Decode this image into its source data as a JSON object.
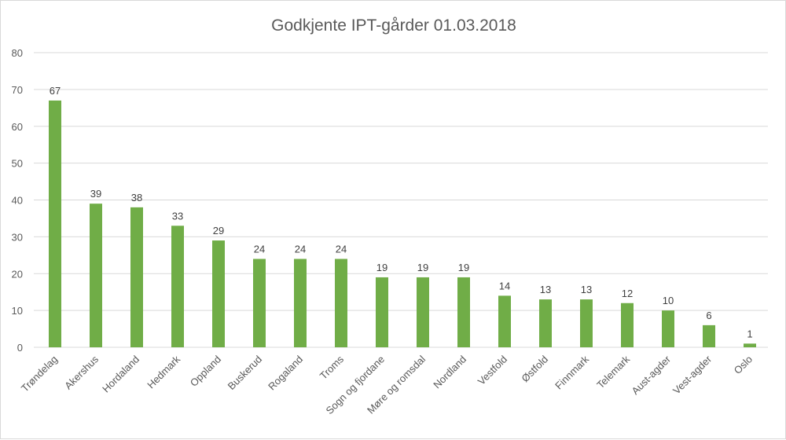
{
  "chart_data": {
    "type": "bar",
    "title": "Godkjente IPT-gårder 01.03.2018",
    "xlabel": "",
    "ylabel": "",
    "categories": [
      "Trøndelag",
      "Akershus",
      "Hordaland",
      "Hedmark",
      "Oppland",
      "Buskerud",
      "Rogaland",
      "Troms",
      "Sogn og fjordane",
      "Møre og romsdal",
      "Nordland",
      "Vestfold",
      "Østfold",
      "Finnmark",
      "Telemark",
      "Aust-agder",
      "Vest-agder",
      "Oslo"
    ],
    "values": [
      67,
      39,
      38,
      33,
      29,
      24,
      24,
      24,
      19,
      19,
      19,
      14,
      13,
      13,
      12,
      10,
      6,
      1
    ],
    "ylim": [
      0,
      80
    ],
    "yticks": [
      0,
      10,
      20,
      30,
      40,
      50,
      60,
      70,
      80
    ],
    "grid": true,
    "legend": "none",
    "data_labels": true,
    "colors": {
      "bar": "#70ad47",
      "grid": "#d9d9d9",
      "text": "#595959",
      "title": "#595959"
    }
  }
}
